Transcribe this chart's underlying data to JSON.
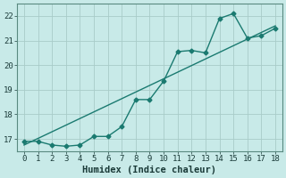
{
  "xlabel": "Humidex (Indice chaleur)",
  "ylabel": "",
  "bg_color": "#c8eae8",
  "grid_color": "#a8ccc8",
  "line_color": "#1a7a70",
  "x_data": [
    0,
    1,
    2,
    3,
    4,
    5,
    6,
    7,
    8,
    9,
    10,
    11,
    12,
    13,
    14,
    15,
    16,
    17,
    18
  ],
  "y_data": [
    16.9,
    16.9,
    16.75,
    16.7,
    16.75,
    17.1,
    17.1,
    17.5,
    18.6,
    18.6,
    19.35,
    20.55,
    20.6,
    20.5,
    21.9,
    22.1,
    21.1,
    21.2,
    21.5
  ],
  "trend_x": [
    0,
    18
  ],
  "trend_y": [
    16.75,
    21.6
  ],
  "xlim": [
    -0.5,
    18.5
  ],
  "ylim": [
    16.5,
    22.5
  ],
  "xticks": [
    0,
    1,
    2,
    3,
    4,
    5,
    6,
    7,
    8,
    9,
    10,
    11,
    12,
    13,
    14,
    15,
    16,
    17,
    18
  ],
  "yticks": [
    17,
    18,
    19,
    20,
    21,
    22
  ],
  "markersize": 2.5,
  "linewidth": 1.0,
  "tick_fontsize": 6.5,
  "xlabel_fontsize": 7.5
}
